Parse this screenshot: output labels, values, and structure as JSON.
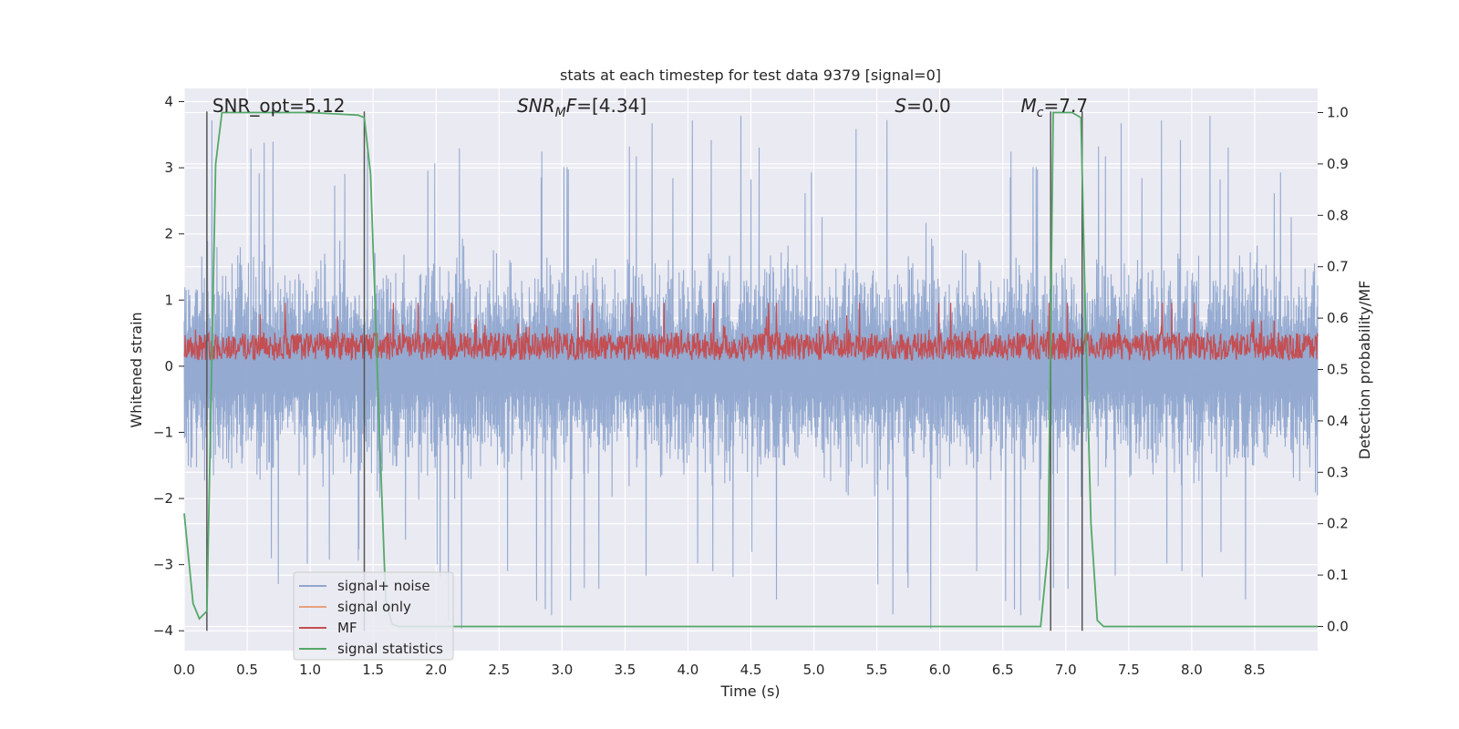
{
  "chart_data": {
    "type": "line",
    "title": "stats at each timestep for test data 9379 [signal=0]",
    "xlabel": "Time (s)",
    "ylabel": "Whitened strain",
    "y2label": "Detection probability/MF",
    "xlim": [
      0.0,
      9.0
    ],
    "ylim": [
      -4.3,
      4.2
    ],
    "y2lim": [
      -0.047,
      1.047
    ],
    "xticks": [
      "0.0",
      "0.5",
      "1.0",
      "1.5",
      "2.0",
      "2.5",
      "3.0",
      "3.5",
      "4.0",
      "4.5",
      "5.0",
      "5.5",
      "6.0",
      "6.5",
      "7.0",
      "7.5",
      "8.0",
      "8.5"
    ],
    "yticks": [
      "4",
      "3",
      "2",
      "1",
      "0",
      "−1",
      "−2",
      "−3",
      "−4"
    ],
    "y2ticks": [
      "1.0",
      "0.9",
      "0.8",
      "0.7",
      "0.6",
      "0.5",
      "0.4",
      "0.3",
      "0.2",
      "0.1",
      "0.0"
    ],
    "grid": true,
    "legend_position": "lower-left",
    "annotations": [
      {
        "text": "SNR_opt=5.12",
        "x": 0.18
      },
      {
        "text": "=[4.34]",
        "math_base": "SNR",
        "math_sub": "M",
        "math_tail": "F",
        "x": 2.6
      },
      {
        "text": "=0.0",
        "math_base": "S",
        "x": 5.6
      },
      {
        "text": "=7.7",
        "math_base": "M",
        "math_sub": "c",
        "x": 6.6
      }
    ],
    "vertical_markers_x": [
      0.18,
      1.43,
      6.88,
      7.13
    ],
    "series": [
      {
        "name": "signal+ noise",
        "color": "#8fa6cf",
        "description": "noise band roughly between -2.5 and 2.8 with spikes up to 3.8 and down to -4.0",
        "envelope": {
          "upper_typical": 1.8,
          "upper_peak": 3.8,
          "lower_typical": -1.7,
          "lower_peak": -4.0
        }
      },
      {
        "name": "signal only",
        "color": "#e8a07e",
        "values": "flat at 0 (not visible)"
      },
      {
        "name": "MF",
        "color": "#c44e52",
        "axis": "y",
        "band": [
          0.05,
          0.7
        ],
        "peak": 0.96
      },
      {
        "name": "signal statistics",
        "color": "#55a868",
        "axis": "y2",
        "x": [
          0.0,
          0.07,
          0.12,
          0.18,
          0.25,
          0.3,
          0.5,
          1.0,
          1.38,
          1.43,
          1.48,
          1.55,
          1.6,
          1.65,
          1.7,
          2.0,
          6.8,
          6.86,
          6.9,
          6.95,
          7.05,
          7.12,
          7.16,
          7.2,
          7.25,
          7.3,
          9.0
        ],
        "values": [
          0.22,
          0.045,
          0.015,
          0.03,
          0.9,
          1.0,
          1.0,
          1.0,
          0.995,
          0.99,
          0.88,
          0.38,
          0.05,
          0.005,
          0.0,
          0.0,
          0.0,
          0.15,
          1.0,
          1.0,
          1.0,
          0.99,
          0.56,
          0.2,
          0.012,
          0.0,
          0.0
        ]
      }
    ]
  },
  "colors": {
    "axes_bg": "#eaeaf2",
    "grid": "#ffffff",
    "noise": "#8fa6cf",
    "mf": "#c44e52",
    "stat": "#55a868",
    "signal_only": "#e8a07e",
    "marker": "#555555"
  }
}
